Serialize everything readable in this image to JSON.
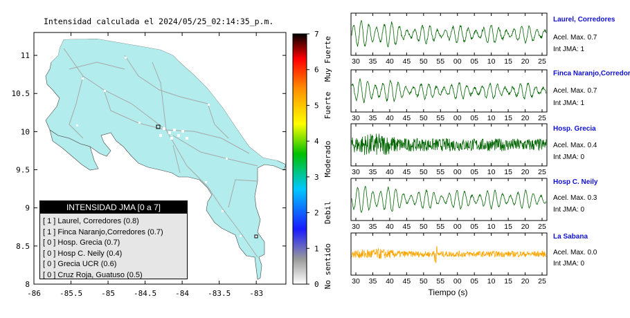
{
  "map": {
    "title": "Intensidad calculada el 2024/05/25_02:14:35_p.m.",
    "xticks": [
      "-86",
      "-85.5",
      "-85",
      "-84.5",
      "-84",
      "-83.5",
      "-83"
    ],
    "yticks": [
      "11",
      "10.5",
      "10",
      "9.5",
      "9",
      "8.5",
      "8"
    ],
    "xlim": [
      -86,
      -82.6
    ],
    "ylim": [
      8,
      11.3
    ],
    "land_color": "#b3ecec"
  },
  "legend": {
    "title": "INTENSIDAD JMA [0 a 7]",
    "rows": [
      "[ 1 ]  Laurel, Corredores (0.8)",
      "[ 1 ]  Finca Naranjo,Corredores (0.7)",
      "[ 0 ]  Hosp. Grecia (0.7)",
      "[ 0 ]  Hosp C. Neily (0.4)",
      "[ 0 ]  Grecia UCR (0.6)",
      "[ 0 ]  Cruz Roja, Guatuso (0.5)"
    ]
  },
  "colorbar": {
    "ticks": [
      "0",
      "1",
      "2",
      "3",
      "4",
      "5",
      "6",
      "7"
    ],
    "categories": [
      "No sentido",
      "Debil",
      "Moderado",
      "Fuerte",
      "Muy Fuerte"
    ],
    "stops": [
      "#ffffff",
      "#9a9a9a",
      "#1a1aff",
      "#00c8ff",
      "#00c000",
      "#ffff00",
      "#ff9000",
      "#ff0000",
      "#000000"
    ]
  },
  "chart_data": {
    "type": "line",
    "xlabel": "Tiempo (s)",
    "x_ticks": [
      "30",
      "35",
      "40",
      "45",
      "50",
      "55",
      "00",
      "05",
      "10",
      "15",
      "20",
      "25"
    ],
    "series": [
      {
        "name": "Laurel, Corredores",
        "acel": "Acel. Max. 0.7",
        "jma": "Int JMA: 1",
        "color": "#006400",
        "style": "smooth",
        "amp": 0.85,
        "noise": 0.15
      },
      {
        "name": "Finca Naranjo,Corredores",
        "acel": "Acel. Max. 0.7",
        "jma": "Int JMA: 1",
        "color": "#006400",
        "style": "smooth",
        "amp": 0.75,
        "noise": 0.15
      },
      {
        "name": "Hosp. Grecia",
        "acel": "Acel. Max. 0.4",
        "jma": "Int JMA: 0",
        "color": "#006400",
        "style": "noisy",
        "amp": 0.7,
        "noise": 0.9
      },
      {
        "name": "Hosp C. Neily",
        "acel": "Acel. Max. 0.3",
        "jma": "Int JMA: 0",
        "color": "#006400",
        "style": "smooth",
        "amp": 0.9,
        "noise": 0.1
      },
      {
        "name": "La Sabana",
        "acel": "Acel. Max. 0.0",
        "jma": "Int JMA: 0",
        "color": "#ffa500",
        "style": "noisy",
        "amp": 0.3,
        "noise": 1.0
      }
    ]
  }
}
